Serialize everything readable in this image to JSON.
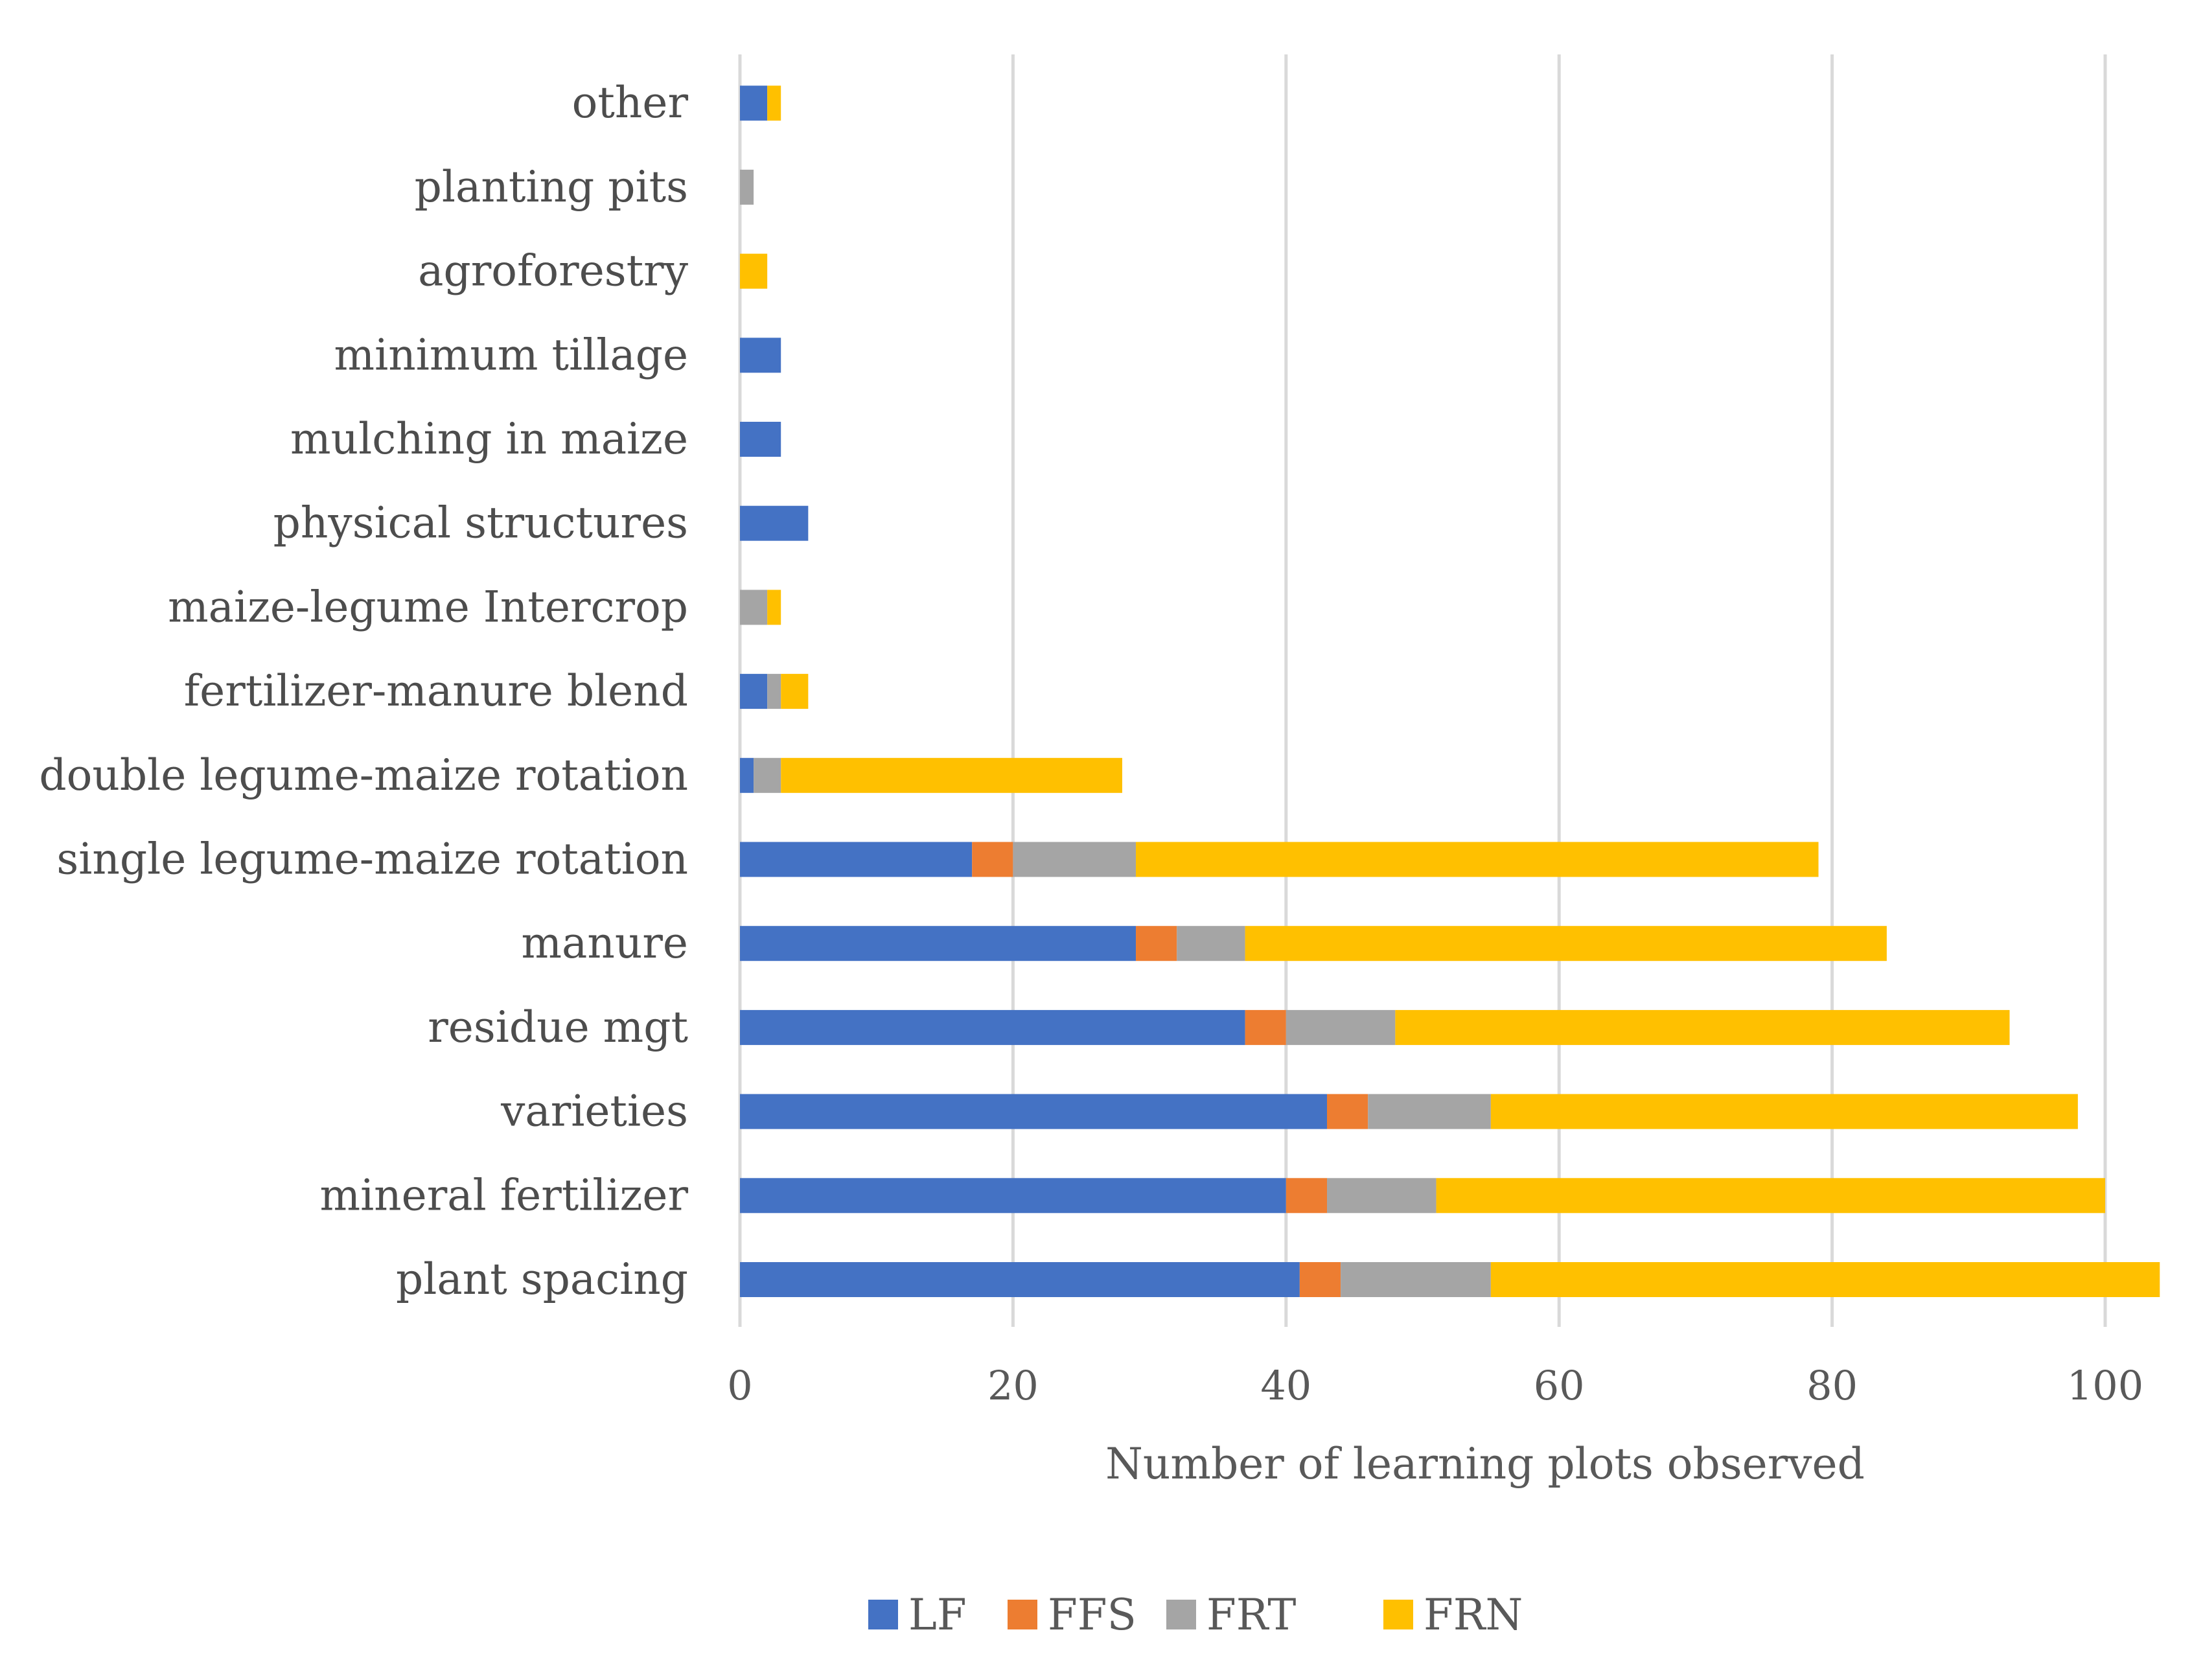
{
  "chart_data": {
    "type": "bar",
    "orientation": "horizontal",
    "stacked": true,
    "title": "",
    "xlabel": "Number of learning plots observed",
    "ylabel": "",
    "xlim": [
      0,
      104
    ],
    "xticks": [
      0,
      20,
      40,
      60,
      80,
      100
    ],
    "xtick_labels": [
      "0",
      "20",
      "40",
      "60",
      "80",
      "100"
    ],
    "grid": true,
    "legend_position": "bottom",
    "categories": [
      "plant spacing",
      "mineral fertilizer",
      "varieties",
      "residue mgt",
      "manure",
      "single legume-maize rotation",
      "double legume-maize rotation",
      "fertilizer-manure blend",
      "maize-legume Intercrop",
      "physical structures",
      "mulching in maize",
      "minimum tillage",
      "agroforestry",
      "planting pits",
      "other"
    ],
    "series": [
      {
        "name": "LF",
        "color": "#4472c4",
        "values": [
          41,
          40,
          43,
          37,
          29,
          17,
          1,
          2,
          0,
          5,
          3,
          3,
          0,
          0,
          2
        ]
      },
      {
        "name": "FFS",
        "color": "#ed7d31",
        "values": [
          3,
          3,
          3,
          3,
          3,
          3,
          0,
          0,
          0,
          0,
          0,
          0,
          0,
          0,
          0
        ]
      },
      {
        "name": "FRT",
        "color": "#a5a5a5",
        "values": [
          11,
          8,
          9,
          8,
          5,
          9,
          2,
          1,
          2,
          0,
          0,
          0,
          0,
          1,
          0
        ]
      },
      {
        "name": "FRN",
        "color": "#ffc000",
        "values": [
          49,
          49,
          43,
          45,
          47,
          50,
          25,
          2,
          1,
          0,
          0,
          0,
          2,
          0,
          1
        ]
      }
    ]
  }
}
